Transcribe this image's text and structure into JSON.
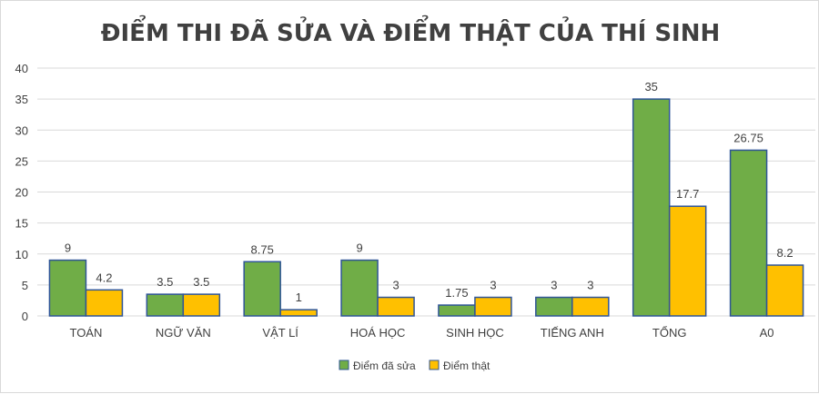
{
  "chart_data": {
    "type": "bar",
    "title": "ĐIỂM THI ĐÃ SỬA VÀ ĐIỂM THẬT CỦA THÍ SINH",
    "categories": [
      "TOÁN",
      "NGỮ VĂN",
      "VẬT LÍ",
      "HOÁ HỌC",
      "SINH HỌC",
      "TIẾNG ANH",
      "TỔNG",
      "A0"
    ],
    "series": [
      {
        "name": "Điểm đã sửa",
        "color": "#70ad47",
        "values": [
          9,
          3.5,
          8.75,
          9,
          1.75,
          3,
          35,
          26.75
        ],
        "labels": [
          "9",
          "3.5",
          "8.75",
          "9",
          "1.75",
          "3",
          "35",
          "26.75"
        ]
      },
      {
        "name": "Điểm thật",
        "color": "#ffc000",
        "values": [
          4.2,
          3.5,
          1,
          3,
          3,
          3,
          17.7,
          8.2
        ],
        "labels": [
          "4.2",
          "3.5",
          "1",
          "3",
          "3",
          "3",
          "17.7",
          "8.2"
        ]
      }
    ],
    "ylim": [
      0,
      40
    ],
    "yticks": [
      "0",
      "5",
      "10",
      "15",
      "20",
      "25",
      "30",
      "35",
      "40"
    ],
    "grid": true,
    "legend": "bottom",
    "bar_outline_color": "#2f5597",
    "grid_color": "#d9d9d9",
    "text_color": "#404040",
    "title_color": "#404040"
  }
}
